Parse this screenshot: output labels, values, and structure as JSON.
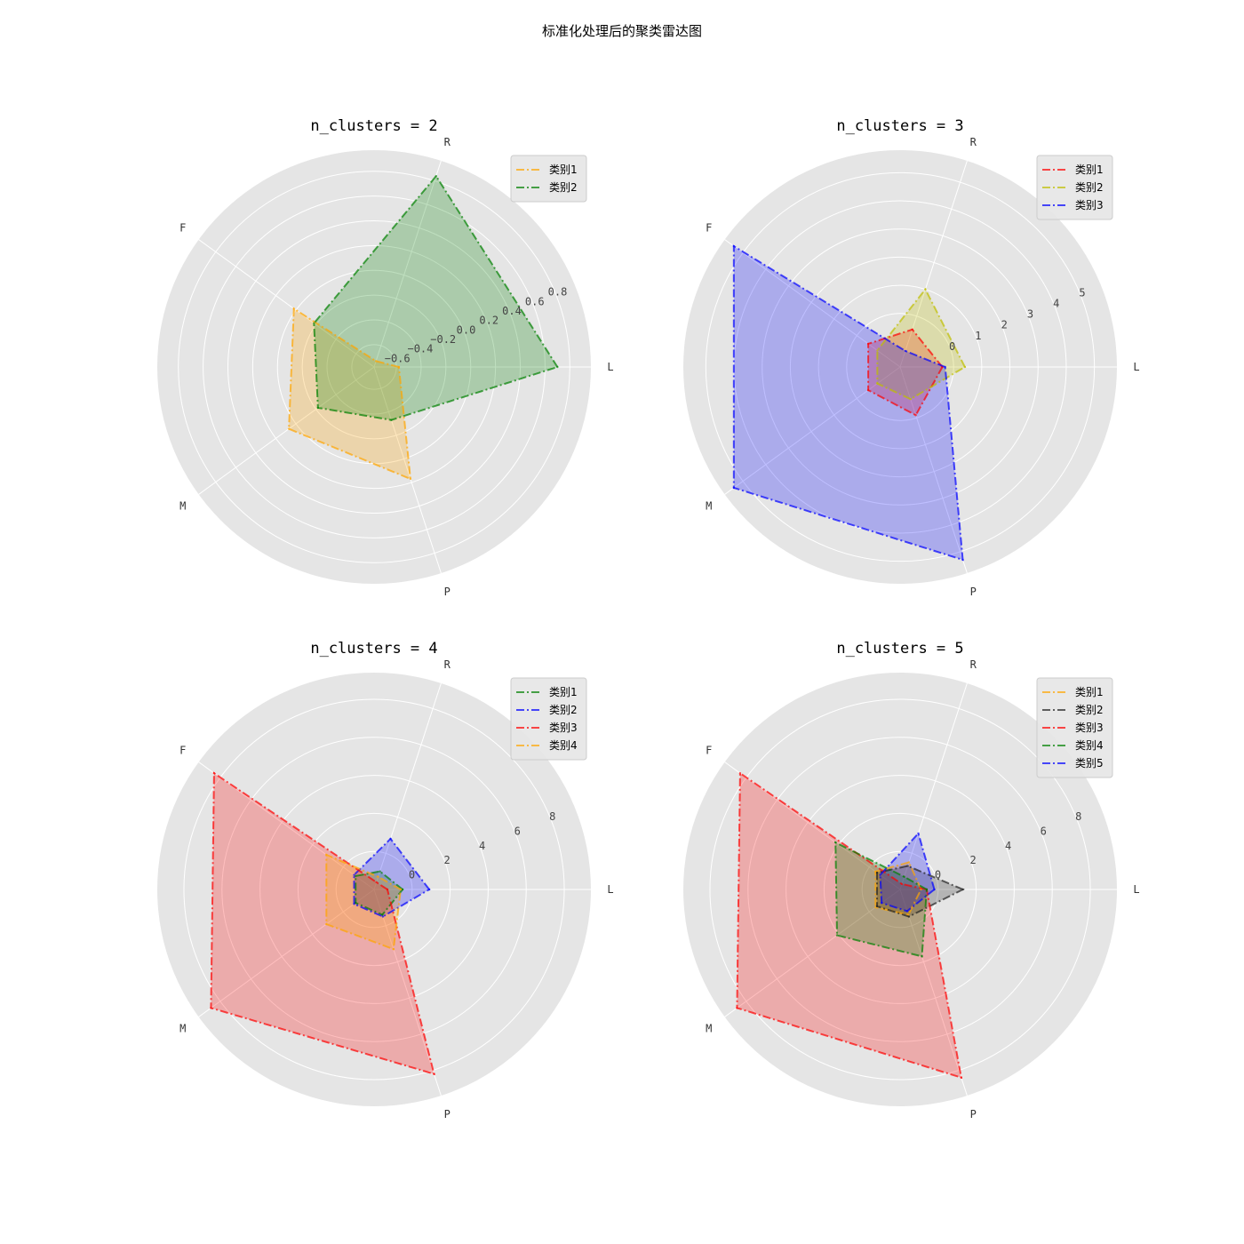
{
  "figure": {
    "suptitle": "标准化处理后的聚类雷达图",
    "background": "#ffffff",
    "axes_background": "#e5e5e5",
    "grid_color": "#ffffff"
  },
  "chart_data": [
    {
      "type": "radar",
      "title": "n_clusters = 2",
      "axes": [
        "L",
        "R",
        "F",
        "M",
        "P"
      ],
      "rlim": [
        -0.78,
        0.97
      ],
      "rticks": [
        -0.6,
        -0.4,
        -0.2,
        0.0,
        0.2,
        0.4,
        0.6,
        0.8
      ],
      "rtick_labels": [
        "−0.6",
        "−0.4",
        "−0.2",
        "0.0",
        "0.2",
        "0.4",
        "0.6",
        "0.8"
      ],
      "legend_position": "top-right",
      "series": [
        {
          "name": "类别1",
          "color": "#ffa500",
          "values": [
            -0.58,
            -0.73,
            0.02,
            0.07,
            0.17
          ]
        },
        {
          "name": "类别2",
          "color": "#008000",
          "values": [
            0.7,
            0.84,
            -0.18,
            -0.22,
            -0.33
          ]
        }
      ]
    },
    {
      "type": "radar",
      "title": "n_clusters = 3",
      "axes": [
        "L",
        "R",
        "F",
        "M",
        "P"
      ],
      "rlim": [
        -1.9,
        5.8
      ],
      "rticks": [
        0,
        1,
        2,
        3,
        4,
        5
      ],
      "rtick_labels": [
        "0",
        "1",
        "2",
        "3",
        "4",
        "5"
      ],
      "legend_position": "top-right",
      "series": [
        {
          "name": "类别1",
          "color": "#ff0000",
          "values": [
            -0.4,
            -0.5,
            -0.5,
            -0.5,
            -0.1
          ]
        },
        {
          "name": "类别2",
          "color": "#bfbf00",
          "values": [
            0.4,
            1.0,
            -0.9,
            -0.9,
            -0.7
          ]
        },
        {
          "name": "类别3",
          "color": "#0000ff",
          "values": [
            -0.3,
            -1.3,
            5.4,
            5.4,
            5.3
          ]
        }
      ]
    },
    {
      "type": "radar",
      "title": "n_clusters = 4",
      "axes": [
        "L",
        "R",
        "F",
        "M",
        "P"
      ],
      "rlim": [
        -2.0,
        9.4
      ],
      "rticks": [
        0,
        2,
        4,
        6,
        8
      ],
      "rtick_labels": [
        "0",
        "2",
        "4",
        "6",
        "8"
      ],
      "legend_position": "top-right",
      "series": [
        {
          "name": "类别1",
          "color": "#008000",
          "values": [
            -0.5,
            -1.0,
            -0.8,
            -0.8,
            -0.6
          ]
        },
        {
          "name": "类别2",
          "color": "#0000ff",
          "values": [
            0.9,
            0.8,
            -0.7,
            -0.7,
            -0.5
          ]
        },
        {
          "name": "类别3",
          "color": "#ff0000",
          "values": [
            -1.3,
            -1.6,
            8.4,
            8.6,
            8.2
          ]
        },
        {
          "name": "类别4",
          "color": "#ffa500",
          "values": [
            -0.6,
            -1.3,
            1.1,
            1.1,
            1.3
          ]
        }
      ]
    },
    {
      "type": "radar",
      "title": "n_clusters = 5",
      "axes": [
        "L",
        "R",
        "F",
        "M",
        "P"
      ],
      "rlim": [
        -2.0,
        9.4
      ],
      "rticks": [
        0,
        2,
        4,
        6,
        8
      ],
      "rtick_labels": [
        "0",
        "2",
        "4",
        "6",
        "8"
      ],
      "legend_position": "top-right",
      "series": [
        {
          "name": "类别1",
          "color": "#ffa500",
          "values": [
            -0.9,
            -0.5,
            -0.4,
            -0.4,
            -0.6
          ]
        },
        {
          "name": "类别2",
          "color": "#222222",
          "values": [
            1.3,
            -0.7,
            -0.5,
            -0.5,
            -0.5
          ]
        },
        {
          "name": "类别3",
          "color": "#ff0000",
          "values": [
            -0.6,
            -1.7,
            8.4,
            8.6,
            8.4
          ]
        },
        {
          "name": "类别4",
          "color": "#008000",
          "values": [
            -0.6,
            -1.3,
            2.2,
            2.1,
            1.7
          ]
        },
        {
          "name": "类别5",
          "color": "#0000ff",
          "values": [
            -0.2,
            1.1,
            -0.7,
            -0.8,
            -0.8
          ]
        }
      ]
    }
  ]
}
